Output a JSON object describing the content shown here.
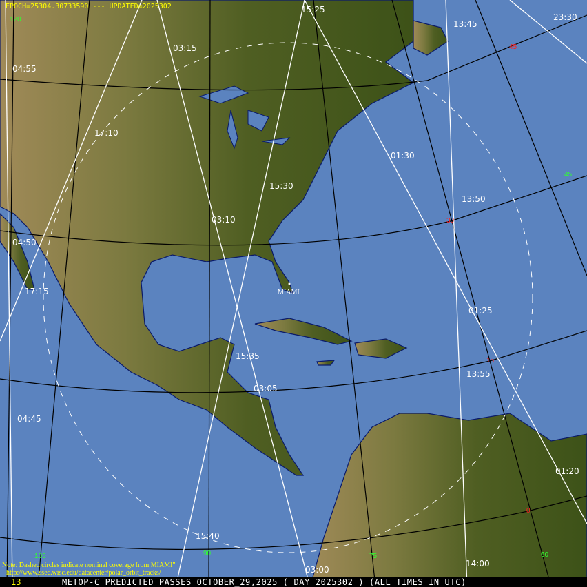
{
  "header": {
    "epoch": "EPOCH=25304.30733590 --- UPDATED=2025302"
  },
  "station": {
    "name": "MIAMI"
  },
  "note": {
    "line1": "Note: Dashed circles indicate nominal coverage from MIAMI\"",
    "line2": "http://www.ssec.wisc.edu/datacenter/polar_orbit_tracks/"
  },
  "footer": {
    "title": "METOP-C PREDICTED PASSES OCTOBER_29,2025 ( DAY 2025302 ) (ALL TIMES IN UTC)",
    "corner": "13"
  },
  "pass_times": [
    "15:25",
    "13:45",
    "23:30",
    "03:15",
    "04:55",
    "17:10",
    "01:30",
    "15:30",
    "13:50",
    "03:10",
    "04:50",
    "17:15",
    "01:25",
    "15:35",
    "13:55",
    "03:05",
    "04:45",
    "01:20",
    "15:40",
    "14:00",
    "03:00"
  ],
  "latitude_labels": [
    "45",
    "30",
    "15",
    "0"
  ],
  "longitude_labels": [
    "120",
    "105",
    "90",
    "75",
    "60",
    "45"
  ],
  "colors": {
    "ocean": "#5b83bf",
    "track": "#ffffff",
    "grid": "#000000",
    "latitude_label": "#ff2020",
    "longitude_label": "#30ff30",
    "header_text": "#ffff00"
  }
}
